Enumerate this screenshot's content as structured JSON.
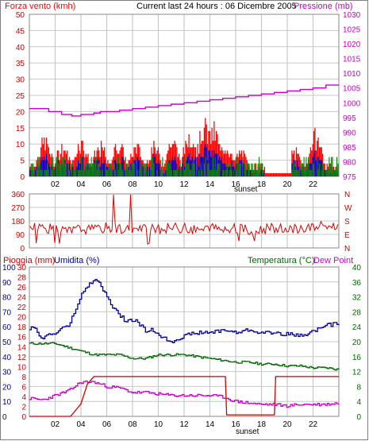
{
  "header": {
    "wind_title": "Forza vento (kmh)",
    "current_title": "Current last 24 hours : 06 Dicembre 2005",
    "pressure_title": "Pressione (mb)",
    "rain_title": "Pioggia (mm)",
    "humidity_title": "Umidita (%)",
    "temperature_title": "Temperatura (°C)",
    "dewpoint_title": "Dew Point",
    "sunset_label": "sunset"
  },
  "colors": {
    "wind_speed": "#ff0000",
    "wind_gust_blue": "#0000cc",
    "wind_green": "#008800",
    "pressure": "#cc00cc",
    "direction": "#dd0000",
    "humidity": "#000099",
    "temperature": "#006600",
    "dewpoint": "#cc00cc",
    "rain": "#cc0000",
    "grid": "#c8c8c8",
    "frame": "#000000"
  },
  "chart_data": [
    {
      "type": "bar",
      "name": "wind",
      "y_left_ticks": [
        "0",
        "5",
        "10",
        "15",
        "20",
        "25",
        "30",
        "35",
        "40",
        "45",
        "50"
      ],
      "y_right_ticks": [
        "975",
        "980",
        "985",
        "990",
        "995",
        "1000",
        "1005",
        "1010",
        "1015",
        "1020",
        "1025",
        "1030"
      ],
      "x_ticks": [
        "02",
        "04",
        "06",
        "08",
        "10",
        "12",
        "14",
        "16",
        "18",
        "20",
        "22"
      ],
      "ylim_left": [
        0,
        50
      ],
      "ylim_right": [
        975,
        1030
      ],
      "xlim_hours": [
        0,
        24
      ],
      "series": [
        {
          "name": "Forza vento (kmh)",
          "kind": "red-bars",
          "gust_peak_hours": [
            1.2,
            2.6,
            4.0,
            5.5,
            6.9,
            8.3,
            9.7,
            11.1,
            12.5,
            13.6,
            14.3,
            15.2,
            16.4,
            18.9,
            20.6,
            22.2
          ],
          "gust_peak_values": [
            13,
            11,
            13,
            11,
            12,
            11,
            11,
            13,
            16,
            19,
            17,
            12,
            9,
            9,
            9,
            15
          ]
        },
        {
          "name": "Pressione (mb)",
          "kind": "line",
          "x": [
            0,
            1,
            1.5,
            2,
            2.5,
            3,
            3.3,
            4,
            5,
            5.5,
            6,
            7,
            8,
            9,
            10,
            11,
            12,
            13,
            14,
            15,
            16,
            17,
            18,
            19,
            20,
            21,
            22,
            22.5,
            23,
            24
          ],
          "y": [
            998,
            998,
            997,
            997,
            996,
            996,
            995.5,
            996,
            996.5,
            997,
            997,
            997.5,
            998,
            998.5,
            999,
            999.5,
            1000,
            1000.5,
            1001,
            1001.5,
            1002,
            1002.5,
            1003,
            1003.5,
            1004,
            1004.5,
            1005,
            1005,
            1006,
            1006
          ]
        }
      ]
    },
    {
      "type": "line",
      "name": "wind-direction",
      "y_left_ticks": [
        "0",
        "90",
        "180",
        "270",
        "360"
      ],
      "y_right_ticks": [
        "N",
        "E",
        "S",
        "W",
        "N"
      ],
      "ylim": [
        0,
        360
      ],
      "series": [
        {
          "name": "direction",
          "x": [
            0,
            1,
            2,
            3,
            4,
            5,
            6,
            6.5,
            7,
            8,
            9,
            10,
            11,
            12,
            13,
            14,
            15,
            16,
            17,
            18,
            19,
            20,
            21,
            22,
            23,
            24
          ],
          "y": [
            150,
            140,
            120,
            110,
            130,
            120,
            140,
            330,
            130,
            120,
            130,
            120,
            140,
            130,
            120,
            130,
            125,
            130,
            120,
            125,
            130,
            120,
            130,
            140,
            150,
            140
          ]
        }
      ]
    },
    {
      "type": "line",
      "name": "humidity-temperature-rain",
      "y_left_outer_ticks": [
        "0",
        "10",
        "20",
        "30",
        "40",
        "50",
        "60",
        "70",
        "80",
        "90",
        "100"
      ],
      "y_left_inner_ticks": [
        "0",
        "2",
        "4",
        "6",
        "8",
        "10",
        "12",
        "14",
        "16",
        "18",
        "20",
        "22",
        "24",
        "26",
        "28",
        "30"
      ],
      "y_right_ticks": [
        "0",
        "4",
        "8",
        "12",
        "16",
        "20",
        "24",
        "28",
        "32",
        "36",
        "40"
      ],
      "ylim_humidity": [
        0,
        100
      ],
      "ylim_rain": [
        0,
        30
      ],
      "ylim_temp": [
        0,
        40
      ],
      "series": [
        {
          "name": "Umidita (%)",
          "x": [
            0,
            0.5,
            1,
            1.5,
            2,
            2.5,
            3,
            3.5,
            4,
            4.5,
            5,
            5.5,
            6,
            6.5,
            7,
            7.5,
            8,
            8.5,
            9,
            9.5,
            10,
            10.5,
            11,
            12,
            13,
            14,
            15,
            16,
            17,
            18,
            19,
            20,
            21,
            22,
            23,
            24
          ],
          "y": [
            59,
            58,
            52,
            55,
            55,
            60,
            60,
            70,
            81,
            87,
            92,
            88,
            80,
            72,
            68,
            63,
            65,
            62,
            57,
            58,
            55,
            52,
            50,
            54,
            56,
            56,
            58,
            56,
            58,
            56,
            56,
            55,
            54,
            57,
            61,
            62
          ]
        },
        {
          "name": "Temperatura (°C)",
          "x": [
            0,
            1,
            2,
            3,
            4,
            5,
            6,
            7,
            8,
            9,
            10,
            11,
            12,
            13,
            14,
            15,
            16,
            17,
            18,
            19,
            20,
            21,
            22,
            23,
            24
          ],
          "y": [
            19.5,
            19.5,
            19.5,
            18.5,
            17.5,
            16.5,
            16.5,
            16.5,
            15.5,
            15.5,
            16.5,
            16.5,
            16.5,
            16.0,
            15.5,
            15.0,
            14.5,
            14.5,
            14.0,
            14.0,
            13.5,
            13.5,
            13.0,
            13.0,
            12.5
          ]
        },
        {
          "name": "Dew Point",
          "x": [
            0,
            1,
            2,
            3,
            4,
            5,
            6,
            7,
            8,
            9,
            10,
            11,
            12,
            13,
            14,
            15,
            16,
            17,
            18,
            19,
            20,
            21,
            22,
            23,
            24
          ],
          "y": [
            4.8,
            4.4,
            5.6,
            6.8,
            9.2,
            9.2,
            8.0,
            7.6,
            6.4,
            6.4,
            6.0,
            5.6,
            5.6,
            5.6,
            5.6,
            5.2,
            4.0,
            3.6,
            3.2,
            3.2,
            2.8,
            3.2,
            3.2,
            3.2,
            3.6
          ]
        },
        {
          "name": "Pioggia (mm)",
          "x": [
            0,
            3.2,
            4.0,
            4.5,
            5.0,
            15.2,
            15.3,
            19.0,
            19.1,
            24
          ],
          "y": [
            0,
            0,
            2.5,
            6.5,
            8.0,
            8.0,
            0.3,
            0.3,
            8.0,
            8.0
          ]
        }
      ]
    }
  ]
}
